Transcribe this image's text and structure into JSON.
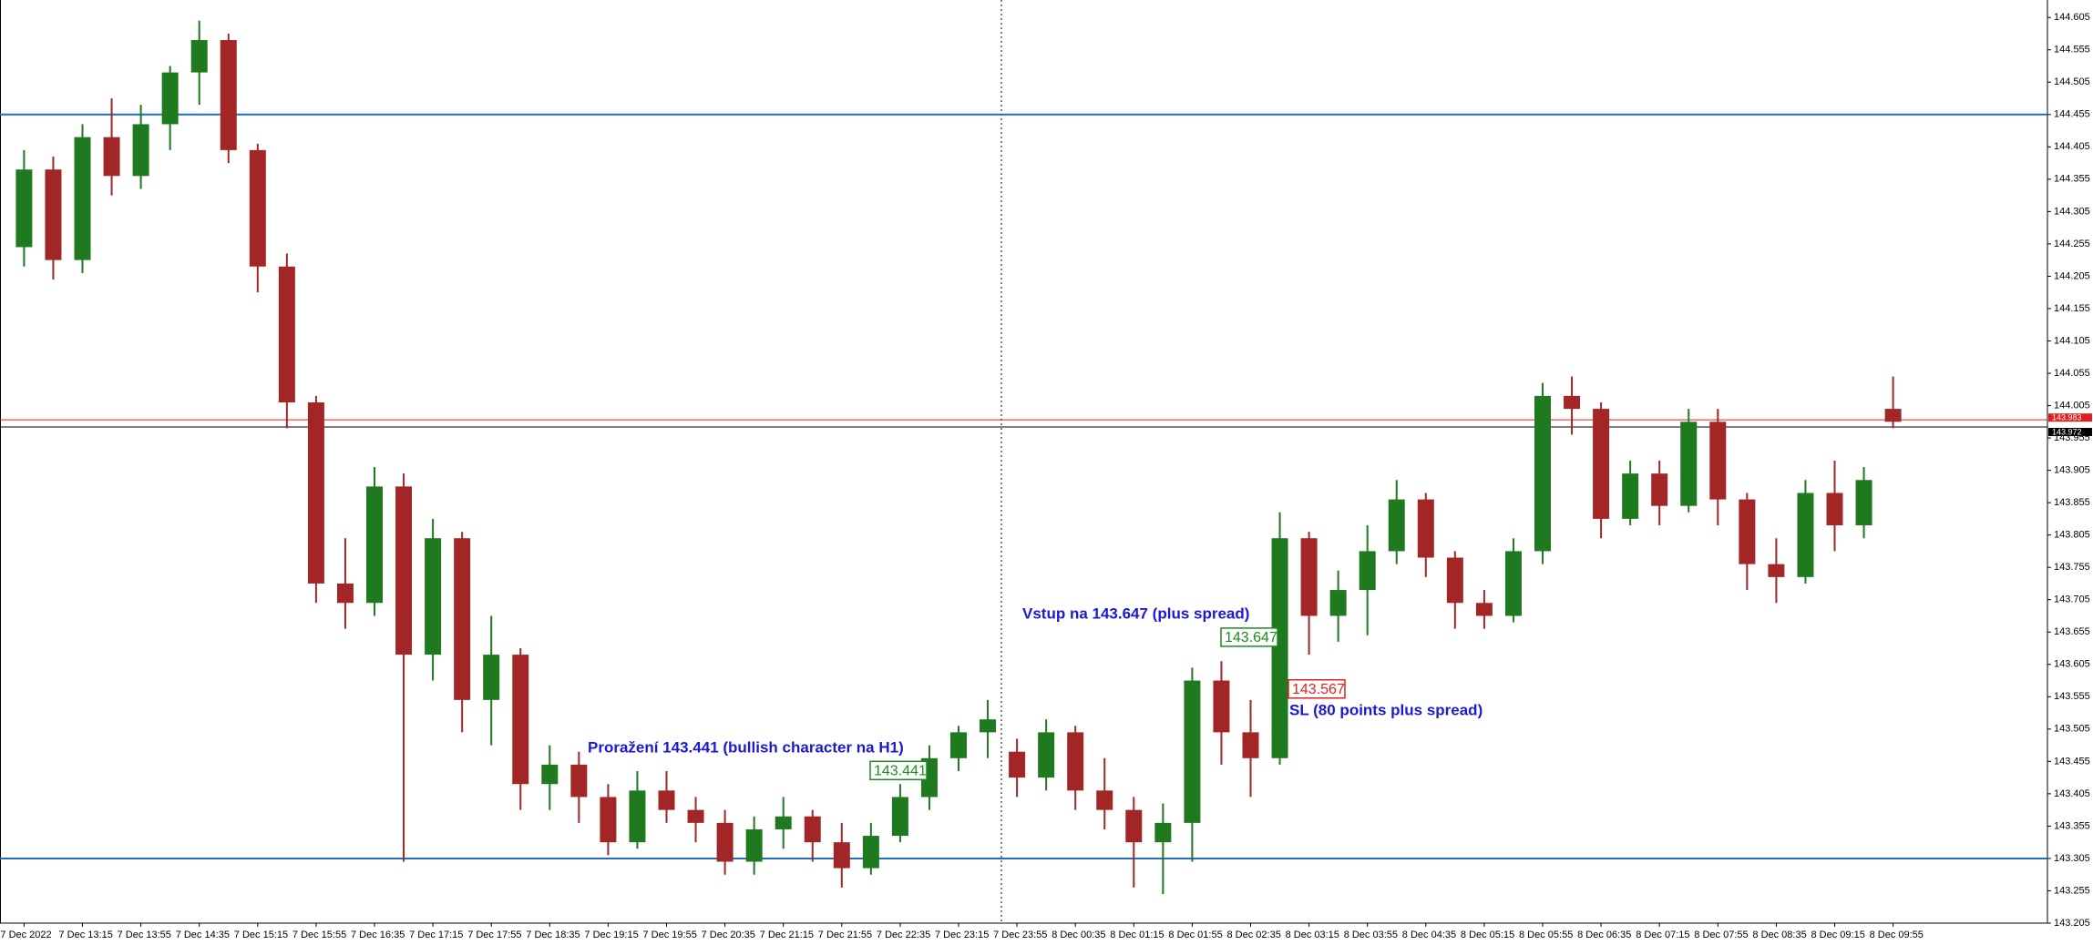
{
  "chart_data": {
    "type": "candlestick",
    "categories": [
      "7 Dec 2022",
      null,
      "7 Dec 13:15",
      null,
      "7 Dec 13:55",
      null,
      "7 Dec 14:35",
      null,
      "7 Dec 15:15",
      null,
      "7 Dec 15:55",
      null,
      "7 Dec 16:35",
      null,
      "7 Dec 17:15",
      null,
      "7 Dec 17:55",
      null,
      "7 Dec 18:35",
      null,
      "7 Dec 19:15",
      null,
      "7 Dec 19:55",
      null,
      "7 Dec 20:35",
      null,
      "7 Dec 21:15",
      null,
      "7 Dec 21:55",
      null,
      "7 Dec 22:35",
      null,
      "7 Dec 23:15",
      null,
      "7 Dec 23:55",
      null,
      "8 Dec 00:35",
      null,
      "8 Dec 01:15",
      null,
      "8 Dec 01:55",
      null,
      "8 Dec 02:35",
      null,
      "8 Dec 03:15",
      null,
      "8 Dec 03:55",
      null,
      "8 Dec 04:35",
      null,
      "8 Dec 05:15",
      null,
      "8 Dec 05:55",
      null,
      "8 Dec 06:35",
      null,
      "8 Dec 07:15",
      null,
      "8 Dec 07:55",
      null,
      "8 Dec 08:35",
      null,
      "8 Dec 09:15",
      null,
      "8 Dec 09:55"
    ],
    "open": [
      144.25,
      144.37,
      144.23,
      144.42,
      144.36,
      144.44,
      144.52,
      144.57,
      144.4,
      144.22,
      144.01,
      143.73,
      143.7,
      143.88,
      143.62,
      143.8,
      143.55,
      143.62,
      143.42,
      143.45,
      143.4,
      143.33,
      143.41,
      143.38,
      143.36,
      143.3,
      143.35,
      143.37,
      143.33,
      143.29,
      143.34,
      143.4,
      143.46,
      143.5,
      143.47,
      143.43,
      143.5,
      143.41,
      143.38,
      143.33,
      143.36,
      143.58,
      143.5,
      143.46,
      143.8,
      143.68,
      143.72,
      143.78,
      143.86,
      143.77,
      143.7,
      143.68,
      143.78,
      144.02,
      144.0,
      143.83,
      143.9,
      143.85,
      143.98,
      143.86,
      143.76,
      143.74,
      143.87,
      143.82,
      144.0
    ],
    "high": [
      144.4,
      144.39,
      144.44,
      144.48,
      144.47,
      144.53,
      144.6,
      144.58,
      144.41,
      144.24,
      144.02,
      143.8,
      143.91,
      143.9,
      143.83,
      143.81,
      143.68,
      143.63,
      143.48,
      143.47,
      143.42,
      143.44,
      143.44,
      143.4,
      143.38,
      143.37,
      143.4,
      143.38,
      143.36,
      143.36,
      143.42,
      143.48,
      143.51,
      143.55,
      143.49,
      143.52,
      143.51,
      143.46,
      143.4,
      143.39,
      143.6,
      143.61,
      143.55,
      143.84,
      143.81,
      143.75,
      143.82,
      143.89,
      143.87,
      143.78,
      143.72,
      143.8,
      144.04,
      144.05,
      144.01,
      143.92,
      143.92,
      144.0,
      144.0,
      143.87,
      143.8,
      143.89,
      143.92,
      143.91,
      144.05
    ],
    "low": [
      144.22,
      144.2,
      144.21,
      144.33,
      144.34,
      144.4,
      144.47,
      144.38,
      144.18,
      143.97,
      143.7,
      143.66,
      143.68,
      143.3,
      143.58,
      143.5,
      143.48,
      143.38,
      143.38,
      143.36,
      143.31,
      143.32,
      143.36,
      143.33,
      143.28,
      143.28,
      143.32,
      143.3,
      143.26,
      143.28,
      143.33,
      143.38,
      143.44,
      143.46,
      143.4,
      143.41,
      143.38,
      143.35,
      143.26,
      143.25,
      143.3,
      143.45,
      143.4,
      143.45,
      143.62,
      143.64,
      143.65,
      143.76,
      143.74,
      143.66,
      143.66,
      143.67,
      143.76,
      143.96,
      143.8,
      143.82,
      143.82,
      143.84,
      143.82,
      143.72,
      143.7,
      143.73,
      143.78,
      143.8,
      143.97
    ],
    "close": [
      144.37,
      144.23,
      144.42,
      144.36,
      144.44,
      144.52,
      144.57,
      144.4,
      144.22,
      144.01,
      143.73,
      143.7,
      143.88,
      143.62,
      143.8,
      143.55,
      143.62,
      143.42,
      143.45,
      143.4,
      143.33,
      143.41,
      143.38,
      143.36,
      143.3,
      143.35,
      143.37,
      143.33,
      143.29,
      143.34,
      143.4,
      143.46,
      143.5,
      143.52,
      143.43,
      143.5,
      143.41,
      143.38,
      143.33,
      143.36,
      143.58,
      143.5,
      143.46,
      143.8,
      143.68,
      143.72,
      143.78,
      143.86,
      143.77,
      143.7,
      143.68,
      143.78,
      144.02,
      144.0,
      143.83,
      143.9,
      143.85,
      143.98,
      143.86,
      143.76,
      143.74,
      143.87,
      143.82,
      143.89,
      143.98
    ],
    "up_color": "#1f7a1f",
    "down_color": "#a32626",
    "ylim": [
      143.205,
      144.632
    ],
    "yticks": [
      143.205,
      143.255,
      143.305,
      143.355,
      143.405,
      143.455,
      143.505,
      143.555,
      143.605,
      143.655,
      143.705,
      143.755,
      143.805,
      143.855,
      143.905,
      143.955,
      144.005,
      144.055,
      144.105,
      144.155,
      144.205,
      144.255,
      144.305,
      144.355,
      144.405,
      144.455,
      144.505,
      144.555,
      144.605
    ],
    "levels": [
      {
        "value": 144.455,
        "color": "#1e6fc4"
      },
      {
        "value": 143.305,
        "color": "#1e6fc4"
      }
    ],
    "price_lines": [
      {
        "value": 143.983,
        "color": "#e02020"
      },
      {
        "value": 143.972,
        "color": "#000000"
      }
    ],
    "price_boxes": [
      {
        "value": 143.647,
        "color": "#1f8a1f"
      },
      {
        "value": 143.567,
        "color": "#e02020"
      },
      {
        "value": 143.441,
        "color": "#1f8a1f"
      }
    ],
    "annotations": [
      "Vstup na 143.647 (plus spread)",
      "SL (80 points plus spread)",
      "Proražení 143.441 (bullish character na H1)"
    ],
    "annotation_color": "#1a1ad6"
  }
}
